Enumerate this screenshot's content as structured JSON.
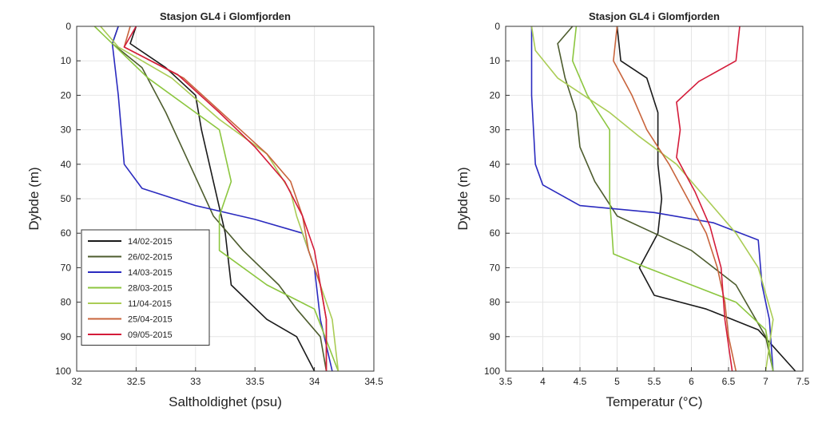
{
  "chart_data": [
    {
      "type": "line",
      "title": "Stasjon GL4 i Glomfjorden",
      "xlabel": "Saltholdighet (psu)",
      "ylabel": "Dybde (m)",
      "xlim": [
        32,
        34.5
      ],
      "ylim": [
        0,
        100
      ],
      "y_reversed": true,
      "xticks": [
        "32",
        "32.5",
        "33",
        "33.5",
        "34",
        "34.5"
      ],
      "yticks": [
        "0",
        "10",
        "20",
        "30",
        "40",
        "50",
        "60",
        "70",
        "80",
        "90",
        "100"
      ],
      "grid": true,
      "legend_position": "bottom-left",
      "series": [
        {
          "name": "14/02-2015",
          "color": "#1a1a1a",
          "points": [
            [
              32.5,
              0
            ],
            [
              32.45,
              5
            ],
            [
              32.75,
              12
            ],
            [
              33.0,
              20
            ],
            [
              33.05,
              30
            ],
            [
              33.15,
              45
            ],
            [
              33.25,
              60
            ],
            [
              33.3,
              75
            ],
            [
              33.6,
              85
            ],
            [
              33.85,
              90
            ],
            [
              34.0,
              100
            ]
          ]
        },
        {
          "name": "26/02-2015",
          "color": "#4d5c2e",
          "points": [
            [
              32.35,
              0
            ],
            [
              32.3,
              5
            ],
            [
              32.55,
              12
            ],
            [
              32.75,
              25
            ],
            [
              32.95,
              40
            ],
            [
              33.15,
              55
            ],
            [
              33.4,
              65
            ],
            [
              33.7,
              75
            ],
            [
              33.85,
              82
            ],
            [
              34.05,
              90
            ],
            [
              34.1,
              100
            ]
          ]
        },
        {
          "name": "14/03-2015",
          "color": "#2b2bbf",
          "points": [
            [
              32.35,
              0
            ],
            [
              32.3,
              5
            ],
            [
              32.35,
              20
            ],
            [
              32.4,
              40
            ],
            [
              32.55,
              47
            ],
            [
              33.0,
              52
            ],
            [
              33.5,
              56
            ],
            [
              33.9,
              60
            ],
            [
              34.0,
              70
            ],
            [
              34.05,
              85
            ],
            [
              34.15,
              100
            ]
          ]
        },
        {
          "name": "28/03-2015",
          "color": "#8cc63f",
          "points": [
            [
              32.15,
              0
            ],
            [
              32.3,
              5
            ],
            [
              32.6,
              15
            ],
            [
              33.0,
              25
            ],
            [
              33.2,
              30
            ],
            [
              33.3,
              45
            ],
            [
              33.2,
              55
            ],
            [
              33.2,
              65
            ],
            [
              33.6,
              75
            ],
            [
              34.0,
              82
            ],
            [
              34.2,
              100
            ]
          ]
        },
        {
          "name": "11/04-2015",
          "color": "#aacc55",
          "points": [
            [
              32.2,
              0
            ],
            [
              32.35,
              6
            ],
            [
              32.8,
              15
            ],
            [
              33.2,
              27
            ],
            [
              33.6,
              37
            ],
            [
              33.8,
              48
            ],
            [
              33.85,
              55
            ],
            [
              33.95,
              65
            ],
            [
              34.05,
              75
            ],
            [
              34.15,
              85
            ],
            [
              34.2,
              100
            ]
          ]
        },
        {
          "name": "25/04-2015",
          "color": "#c8643c",
          "points": [
            [
              32.45,
              0
            ],
            [
              32.4,
              6
            ],
            [
              32.9,
              15
            ],
            [
              33.25,
              26
            ],
            [
              33.6,
              37
            ],
            [
              33.8,
              45
            ],
            [
              33.9,
              55
            ],
            [
              33.95,
              65
            ],
            [
              34.05,
              75
            ],
            [
              34.1,
              85
            ],
            [
              34.1,
              100
            ]
          ]
        },
        {
          "name": "09/05-2015",
          "color": "#d41c3a",
          "points": [
            [
              32.5,
              0
            ],
            [
              32.4,
              6
            ],
            [
              32.85,
              14
            ],
            [
              33.2,
              25
            ],
            [
              33.5,
              35
            ],
            [
              33.75,
              45
            ],
            [
              33.9,
              55
            ],
            [
              34.0,
              65
            ],
            [
              34.05,
              75
            ],
            [
              34.1,
              85
            ],
            [
              34.1,
              100
            ]
          ]
        }
      ]
    },
    {
      "type": "line",
      "title": "Stasjon GL4 i Glomfjorden",
      "xlabel": "Temperatur (°C)",
      "ylabel": "Dybde (m)",
      "xlim": [
        3.5,
        7.5
      ],
      "ylim": [
        0,
        100
      ],
      "y_reversed": true,
      "xticks": [
        "3.5",
        "4",
        "4.5",
        "5",
        "5.5",
        "6",
        "6.5",
        "7",
        "7.5"
      ],
      "yticks": [
        "0",
        "10",
        "20",
        "30",
        "40",
        "50",
        "60",
        "70",
        "80",
        "90",
        "100"
      ],
      "grid": true,
      "series": [
        {
          "name": "14/02-2015",
          "color": "#1a1a1a",
          "points": [
            [
              5.0,
              0
            ],
            [
              5.05,
              10
            ],
            [
              5.4,
              15
            ],
            [
              5.55,
              25
            ],
            [
              5.55,
              40
            ],
            [
              5.6,
              50
            ],
            [
              5.55,
              60
            ],
            [
              5.3,
              70
            ],
            [
              5.5,
              78
            ],
            [
              6.2,
              82
            ],
            [
              6.9,
              88
            ],
            [
              7.4,
              100
            ]
          ]
        },
        {
          "name": "26/02-2015",
          "color": "#4d5c2e",
          "points": [
            [
              4.4,
              0
            ],
            [
              4.2,
              5
            ],
            [
              4.3,
              15
            ],
            [
              4.45,
              25
            ],
            [
              4.5,
              35
            ],
            [
              4.7,
              45
            ],
            [
              5.0,
              55
            ],
            [
              5.5,
              60
            ],
            [
              6.0,
              65
            ],
            [
              6.6,
              75
            ],
            [
              7.0,
              90
            ],
            [
              7.1,
              100
            ]
          ]
        },
        {
          "name": "14/03-2015",
          "color": "#2b2bbf",
          "points": [
            [
              3.85,
              0
            ],
            [
              3.85,
              20
            ],
            [
              3.9,
              40
            ],
            [
              4.0,
              46
            ],
            [
              4.5,
              52
            ],
            [
              5.5,
              54
            ],
            [
              6.3,
              57
            ],
            [
              6.9,
              62
            ],
            [
              6.95,
              75
            ],
            [
              7.05,
              85
            ],
            [
              7.1,
              100
            ]
          ]
        },
        {
          "name": "28/03-2015",
          "color": "#8cc63f",
          "points": [
            [
              4.45,
              0
            ],
            [
              4.4,
              10
            ],
            [
              4.6,
              20
            ],
            [
              4.9,
              30
            ],
            [
              4.9,
              50
            ],
            [
              4.95,
              66
            ],
            [
              5.4,
              70
            ],
            [
              6.0,
              75
            ],
            [
              6.6,
              80
            ],
            [
              7.0,
              88
            ],
            [
              7.1,
              100
            ]
          ]
        },
        {
          "name": "11/04-2015",
          "color": "#aacc55",
          "points": [
            [
              3.85,
              0
            ],
            [
              3.9,
              7
            ],
            [
              4.2,
              15
            ],
            [
              4.9,
              25
            ],
            [
              5.3,
              32
            ],
            [
              5.8,
              40
            ],
            [
              6.2,
              50
            ],
            [
              6.6,
              60
            ],
            [
              6.9,
              70
            ],
            [
              7.1,
              85
            ],
            [
              7.0,
              100
            ]
          ]
        },
        {
          "name": "25/04-2015",
          "color": "#c8643c",
          "points": [
            [
              5.0,
              0
            ],
            [
              4.95,
              10
            ],
            [
              5.2,
              20
            ],
            [
              5.4,
              30
            ],
            [
              5.7,
              40
            ],
            [
              5.95,
              50
            ],
            [
              6.2,
              60
            ],
            [
              6.35,
              70
            ],
            [
              6.45,
              80
            ],
            [
              6.5,
              90
            ],
            [
              6.6,
              100
            ]
          ]
        },
        {
          "name": "09/05-2015",
          "color": "#d41c3a",
          "points": [
            [
              6.65,
              0
            ],
            [
              6.6,
              10
            ],
            [
              6.1,
              16
            ],
            [
              5.8,
              22
            ],
            [
              5.85,
              30
            ],
            [
              5.8,
              38
            ],
            [
              6.05,
              48
            ],
            [
              6.25,
              58
            ],
            [
              6.4,
              70
            ],
            [
              6.45,
              85
            ],
            [
              6.55,
              100
            ]
          ]
        }
      ]
    }
  ]
}
